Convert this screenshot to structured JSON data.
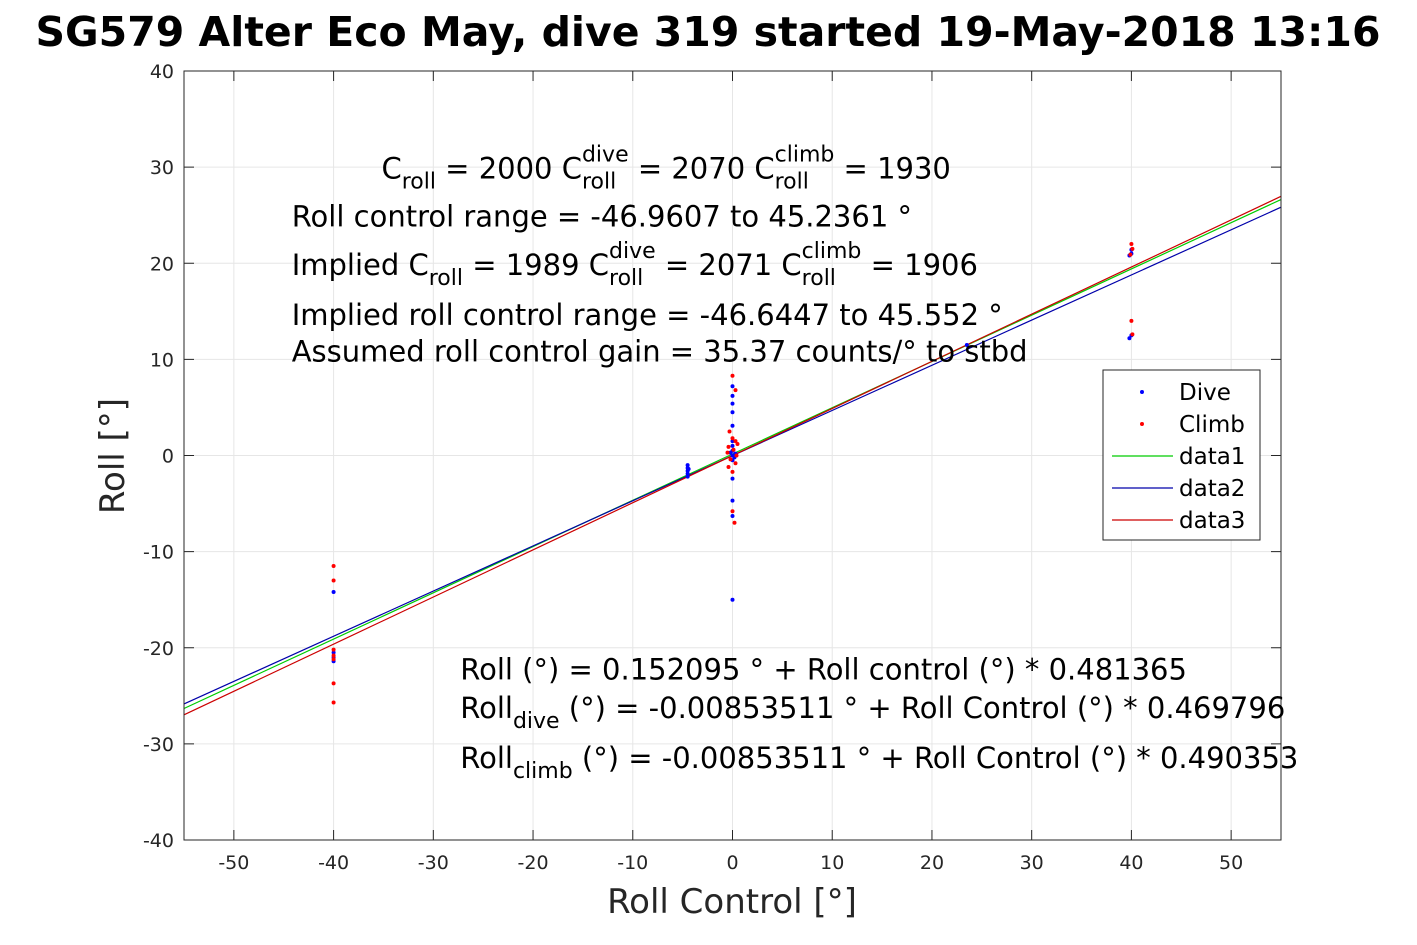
{
  "chart_data": {
    "type": "scatter",
    "title": "SG579 Alter Eco May, dive 319 started 19-May-2018 13:16",
    "xlabel": "Roll Control [°]",
    "ylabel": "Roll [°]",
    "xlim": [
      -55,
      55
    ],
    "ylim": [
      -40,
      40
    ],
    "xticks": [
      -50,
      -40,
      -30,
      -20,
      -10,
      0,
      10,
      20,
      30,
      40,
      50
    ],
    "yticks": [
      -40,
      -30,
      -20,
      -10,
      0,
      10,
      20,
      30,
      40
    ],
    "grid": true,
    "legend_position": "right",
    "legend": [
      {
        "label": "Dive",
        "kind": "marker",
        "color": "#0000ff"
      },
      {
        "label": "Climb",
        "kind": "marker",
        "color": "#ff0000"
      },
      {
        "label": "data1",
        "kind": "line",
        "color": "#00cc00"
      },
      {
        "label": "data2",
        "kind": "line",
        "color": "#0000aa"
      },
      {
        "label": "data3",
        "kind": "line",
        "color": "#cc0000"
      }
    ],
    "series": [
      {
        "name": "Dive",
        "kind": "scatter",
        "color": "#0000ff",
        "points": [
          [
            -40,
            -14.2
          ],
          [
            -40,
            -20.5
          ],
          [
            -40,
            -21
          ],
          [
            -40,
            -21.4
          ],
          [
            -4.5,
            -1
          ],
          [
            -4.5,
            -1.3
          ],
          [
            -4.5,
            -1.6
          ],
          [
            -4.5,
            -1.9
          ],
          [
            -4.5,
            -2.2
          ],
          [
            -4.4,
            -1.4
          ],
          [
            0,
            7.2
          ],
          [
            0,
            6.2
          ],
          [
            0,
            5.4
          ],
          [
            0,
            4.5
          ],
          [
            0,
            3.1
          ],
          [
            0,
            1.5
          ],
          [
            0,
            1
          ],
          [
            0,
            0.5
          ],
          [
            0,
            0
          ],
          [
            0,
            -0.5
          ],
          [
            0.2,
            -0.2
          ],
          [
            0.3,
            0.2
          ],
          [
            -0.2,
            0.3
          ],
          [
            0,
            -2.4
          ],
          [
            0,
            -4.7
          ],
          [
            0,
            -6.3
          ],
          [
            0,
            -15
          ],
          [
            23.5,
            11.5
          ],
          [
            40,
            21
          ],
          [
            40,
            21.4
          ],
          [
            39.8,
            20.8
          ],
          [
            40,
            12.5
          ],
          [
            39.8,
            12.2
          ]
        ]
      },
      {
        "name": "Climb",
        "kind": "scatter",
        "color": "#ff0000",
        "points": [
          [
            -40,
            -11.5
          ],
          [
            -40,
            -13
          ],
          [
            -40,
            -20.2
          ],
          [
            -40,
            -20.8
          ],
          [
            -40,
            -21.2
          ],
          [
            -40,
            -23.7
          ],
          [
            -40,
            -25.7
          ],
          [
            0,
            8.3
          ],
          [
            0.3,
            6.8
          ],
          [
            -0.3,
            2.5
          ],
          [
            0,
            1.8
          ],
          [
            0.3,
            1.5
          ],
          [
            0.5,
            1.2
          ],
          [
            -0.4,
            0.9
          ],
          [
            0.1,
            0.6
          ],
          [
            -0.5,
            0.3
          ],
          [
            0.4,
            0
          ],
          [
            -0.2,
            -0.4
          ],
          [
            0.3,
            -0.8
          ],
          [
            -0.4,
            -1.2
          ],
          [
            0,
            -1.7
          ],
          [
            0,
            -5.8
          ],
          [
            0.2,
            -7
          ],
          [
            40,
            22
          ],
          [
            40.1,
            21.5
          ],
          [
            39.9,
            20.9
          ],
          [
            40,
            14
          ],
          [
            40.1,
            12.6
          ]
        ]
      },
      {
        "name": "data1",
        "kind": "line",
        "color": "#00cc00",
        "x": [
          -55,
          55
        ],
        "y": [
          -26.32,
          26.63
        ]
      },
      {
        "name": "data2",
        "kind": "line",
        "color": "#0000aa",
        "x": [
          -55,
          55
        ],
        "y": [
          -25.85,
          25.83
        ]
      },
      {
        "name": "data3",
        "kind": "line",
        "color": "#cc0000",
        "x": [
          -55,
          55
        ],
        "y": [
          -26.98,
          26.96
        ]
      }
    ],
    "annotations": [
      {
        "segments": [
          {
            "t": "C"
          },
          {
            "t": "roll",
            "s": "sub"
          },
          {
            "t": " = 2000        C"
          },
          {
            "t": "roll",
            "s": "sub",
            "up": "dive"
          },
          {
            "t": " = 2070        C"
          },
          {
            "t": "roll",
            "s": "sub",
            "up": "climb"
          },
          {
            "t": " = 1930"
          }
        ],
        "x": -35.2,
        "y": 28.8
      },
      {
        "segments": [
          {
            "t": "Roll control range = -46.9607 to 45.2361 °"
          }
        ],
        "x": -44.2,
        "y": 23.8
      },
      {
        "segments": [
          {
            "t": "Implied C"
          },
          {
            "t": "roll",
            "s": "sub"
          },
          {
            "t": " = 1989        C"
          },
          {
            "t": "roll",
            "s": "sub",
            "up": "dive"
          },
          {
            "t": " = 2071        C"
          },
          {
            "t": "roll",
            "s": "sub",
            "up": "climb"
          },
          {
            "t": " = 1906"
          }
        ],
        "x": -44.2,
        "y": 18.8
      },
      {
        "segments": [
          {
            "t": "Implied roll control range = -46.6447 to 45.552 °"
          }
        ],
        "x": -44.2,
        "y": 13.6
      },
      {
        "segments": [
          {
            "t": "Assumed roll control gain = 35.37 counts/° to stbd"
          }
        ],
        "x": -44.2,
        "y": 9.8
      },
      {
        "segments": [
          {
            "t": "Roll (°) = 0.152095 ° + Roll control (°) * 0.481365"
          }
        ],
        "x": -27.3,
        "y": -23.3
      },
      {
        "segments": [
          {
            "t": "Roll"
          },
          {
            "t": "dive",
            "s": "sub"
          },
          {
            "t": " (°) = -0.00853511 ° + Roll Control (°) * 0.469796"
          }
        ],
        "x": -27.3,
        "y": -27.3
      },
      {
        "segments": [
          {
            "t": "Roll"
          },
          {
            "t": "climb",
            "s": "sub"
          },
          {
            "t": " (°) = -0.00853511 ° + Roll Control (°) * 0.490353"
          }
        ],
        "x": -27.3,
        "y": -32.5
      }
    ]
  }
}
